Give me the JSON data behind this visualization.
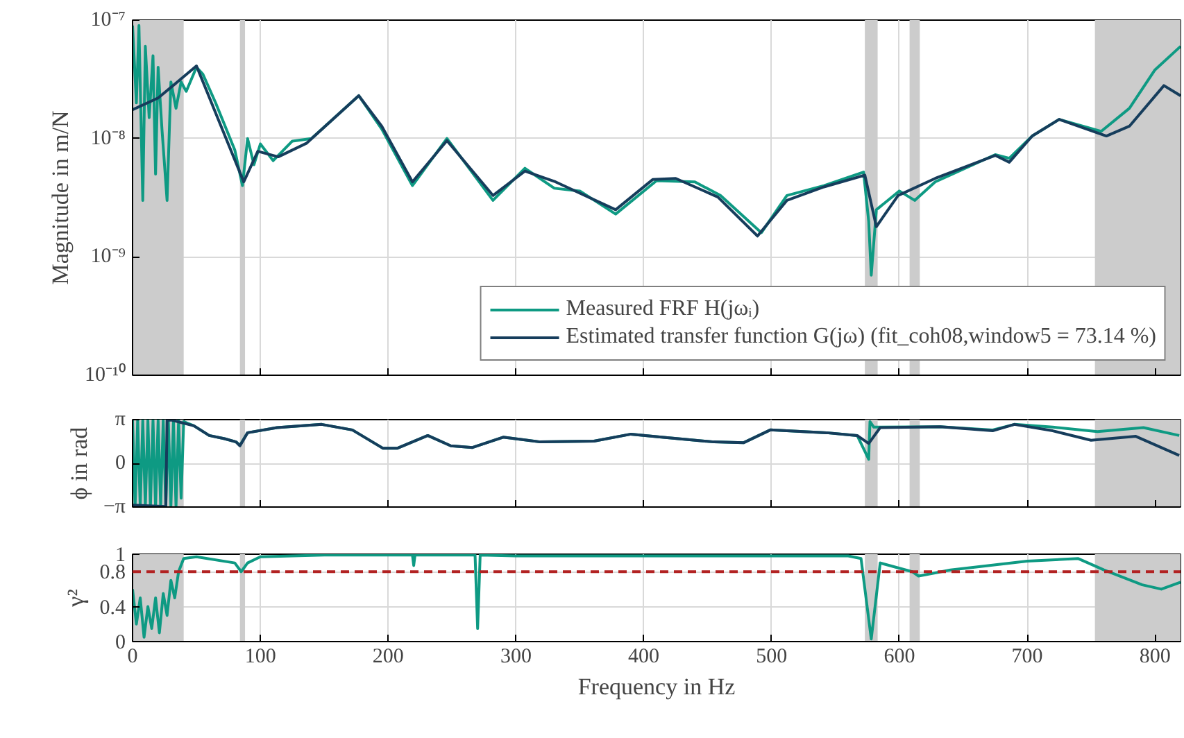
{
  "chart_data": [
    {
      "type": "line",
      "ylabel": "Magnitude in m/N",
      "log": true,
      "xlim": [
        0,
        820
      ],
      "ylim": [
        1e-10,
        1e-07
      ],
      "xticks": [
        0,
        100,
        200,
        300,
        400,
        500,
        600,
        700,
        800
      ],
      "yticks": [
        {
          "value": 1e-10,
          "label": "10⁻¹⁰"
        },
        {
          "value": 1e-09,
          "label": "10⁻⁹"
        },
        {
          "value": 1e-08,
          "label": "10⁻⁸"
        },
        {
          "value": 1e-07,
          "label": "10⁻⁷"
        }
      ],
      "tick_labels": "y",
      "grid": true,
      "legend": "bottom right",
      "line_style": "solid",
      "bands": [
        {
          "axis": "x",
          "from": 0,
          "to": 40,
          "color": "#cccccc"
        },
        {
          "axis": "x",
          "from": 84,
          "to": 88,
          "color": "#cccccc"
        },
        {
          "axis": "x",
          "from": 573,
          "to": 583,
          "color": "#cccccc"
        },
        {
          "axis": "x",
          "from": 608,
          "to": 616,
          "color": "#cccccc"
        },
        {
          "axis": "x",
          "from": 753,
          "to": 820,
          "color": "#cccccc"
        }
      ],
      "series": [
        {
          "name": "Measured FRF H(jωᵢ)",
          "color": "#0e9a83",
          "x": [
            0,
            3,
            5,
            8,
            10,
            13,
            16,
            18,
            20,
            23,
            27,
            30,
            34,
            38,
            42,
            50,
            55,
            65,
            80,
            86,
            90,
            95,
            100,
            110,
            125,
            140,
            177,
            195,
            219,
            246,
            282,
            307,
            330,
            350,
            378,
            410,
            440,
            460,
            492,
            512,
            541,
            572,
            576,
            578,
            582,
            600,
            612,
            628,
            675,
            686,
            704,
            725,
            758,
            780,
            800,
            820
          ],
          "values": [
            9e-08,
            2e-08,
            9e-08,
            3e-09,
            6e-08,
            1.5e-08,
            5e-08,
            5e-09,
            4e-08,
            1.2e-08,
            3e-09,
            3e-08,
            1.8e-08,
            3e-08,
            2.5e-08,
            4e-08,
            3.5e-08,
            2e-08,
            8e-09,
            4e-09,
            1e-08,
            6e-09,
            9e-09,
            6.5e-09,
            9.5e-09,
            1e-08,
            2.3e-08,
            1.2e-08,
            4e-09,
            1e-08,
            3e-09,
            5.6e-09,
            3.8e-09,
            3.6e-09,
            2.3e-09,
            4.4e-09,
            4.3e-09,
            3.3e-09,
            1.6e-09,
            3.3e-09,
            4e-09,
            5.2e-09,
            2e-09,
            7e-10,
            2.5e-09,
            3.6e-09,
            3e-09,
            4.3e-09,
            7.3e-09,
            6.8e-09,
            1.05e-08,
            1.45e-08,
            1.15e-08,
            1.8e-08,
            3.8e-08,
            6e-08
          ]
        },
        {
          "name": "Estimated transfer function G(jω) (fit_coh08,window5 = 73.14 %)",
          "color": "#163d5c",
          "x": [
            0,
            20,
            35,
            50,
            87,
            98,
            114,
            136,
            177,
            195,
            219,
            246,
            282,
            307,
            331,
            378,
            407,
            425,
            458,
            489,
            512,
            541,
            573,
            582,
            599,
            628,
            675,
            686,
            704,
            725,
            762,
            780,
            807,
            820
          ],
          "values": [
            1.75e-08,
            2.2e-08,
            3e-08,
            4.1e-08,
            4.3e-09,
            7.8e-09,
            7e-09,
            9.1e-09,
            2.3e-08,
            1.27e-08,
            4.3e-09,
            9.6e-09,
            3.3e-09,
            5.3e-09,
            4.3e-09,
            2.5e-09,
            4.5e-09,
            4.6e-09,
            3.2e-09,
            1.5e-09,
            3e-09,
            3.9e-09,
            4.9e-09,
            1.8e-09,
            3.3e-09,
            4.6e-09,
            7.2e-09,
            6.3e-09,
            1.05e-08,
            1.45e-08,
            1.05e-08,
            1.27e-08,
            2.8e-08,
            2.3e-08
          ]
        }
      ]
    },
    {
      "type": "line",
      "ylabel": "ϕ in rad",
      "xlim": [
        0,
        820
      ],
      "ylim": [
        -3.1416,
        3.1416
      ],
      "xticks": [
        0,
        100,
        200,
        300,
        400,
        500,
        600,
        700,
        800
      ],
      "yticks": [
        {
          "value": -3.1416,
          "label": "−π"
        },
        0,
        {
          "value": 3.1416,
          "label": "π"
        }
      ],
      "tick_labels": "y",
      "grid": true,
      "line_style": "solid",
      "bands": [
        {
          "axis": "x",
          "from": 0,
          "to": 40,
          "color": "#cccccc"
        },
        {
          "axis": "x",
          "from": 84,
          "to": 88,
          "color": "#cccccc"
        },
        {
          "axis": "x",
          "from": 573,
          "to": 583,
          "color": "#cccccc"
        },
        {
          "axis": "x",
          "from": 608,
          "to": 616,
          "color": "#cccccc"
        },
        {
          "axis": "x",
          "from": 753,
          "to": 820,
          "color": "#cccccc"
        }
      ],
      "series": [
        {
          "color": "#0e9a83",
          "x": [
            0,
            2,
            4,
            6,
            8,
            10,
            12,
            14,
            16,
            18,
            20,
            22,
            24,
            26,
            28,
            30,
            32,
            34,
            36,
            38,
            40,
            48,
            60,
            72,
            81,
            84,
            90,
            113,
            148,
            172,
            196,
            207,
            231,
            249,
            266,
            290,
            319,
            361,
            390,
            414,
            455,
            478,
            499,
            543,
            567,
            576,
            577,
            580,
            632,
            673,
            690,
            720,
            755,
            791,
            819
          ],
          "values": [
            3.1,
            -3.1,
            3.1,
            -3.1,
            3.1,
            -3.1,
            3.1,
            -3.1,
            3.1,
            -3.1,
            3.1,
            -3.1,
            3.1,
            -3.1,
            3.1,
            -3.1,
            3.1,
            -3.1,
            3.1,
            -2.5,
            3.0,
            2.7,
            2.0,
            1.77,
            1.54,
            1.3,
            2.2,
            2.57,
            2.8,
            2.4,
            1.08,
            1.08,
            2.0,
            1.26,
            1.14,
            1.88,
            1.54,
            1.6,
            2.1,
            1.88,
            1.54,
            1.48,
            2.4,
            2.2,
            2.0,
            0.29,
            3.0,
            2.6,
            2.63,
            2.4,
            2.8,
            2.6,
            2.28,
            2.57,
            2.0
          ]
        },
        {
          "color": "#163d5c",
          "x": [
            0,
            26,
            27,
            31,
            48,
            60,
            72,
            81,
            84,
            90,
            113,
            148,
            172,
            196,
            207,
            231,
            249,
            266,
            290,
            319,
            361,
            390,
            414,
            455,
            478,
            499,
            543,
            567,
            576,
            585,
            632,
            673,
            690,
            720,
            750,
            785,
            819
          ],
          "values": [
            -3.0,
            -3.1,
            3.1,
            3.1,
            2.7,
            2.0,
            1.77,
            1.54,
            1.26,
            2.2,
            2.57,
            2.8,
            2.4,
            1.08,
            1.08,
            2.0,
            1.26,
            1.14,
            1.88,
            1.54,
            1.6,
            2.1,
            1.88,
            1.54,
            1.48,
            2.4,
            2.2,
            2.0,
            1.43,
            2.57,
            2.63,
            2.34,
            2.8,
            2.34,
            1.66,
            1.94,
            0.57
          ]
        }
      ]
    },
    {
      "type": "line",
      "xlabel": "Frequency in Hz",
      "ylabel": "γ²",
      "xlim": [
        0,
        820
      ],
      "ylim": [
        0,
        1
      ],
      "xticks": [
        0,
        100,
        200,
        300,
        400,
        500,
        600,
        700,
        800
      ],
      "yticks": [
        0,
        0.4,
        0.8,
        1
      ],
      "grid": true,
      "line_style": "solid",
      "ref_lines": [
        {
          "axis": "y",
          "value": 0.8,
          "color": "#b22222",
          "line_style": "dashed"
        }
      ],
      "bands": [
        {
          "axis": "x",
          "from": 0,
          "to": 40,
          "color": "#cccccc"
        },
        {
          "axis": "x",
          "from": 84,
          "to": 88,
          "color": "#cccccc"
        },
        {
          "axis": "x",
          "from": 573,
          "to": 583,
          "color": "#cccccc"
        },
        {
          "axis": "x",
          "from": 608,
          "to": 616,
          "color": "#cccccc"
        },
        {
          "axis": "x",
          "from": 753,
          "to": 820,
          "color": "#cccccc"
        }
      ],
      "series": [
        {
          "color": "#0e9a83",
          "x": [
            0,
            3,
            6,
            9,
            12,
            15,
            18,
            21,
            24,
            27,
            30,
            33,
            36,
            40,
            50,
            80,
            85,
            90,
            100,
            150,
            219,
            220,
            221,
            268,
            270,
            272,
            300,
            560,
            570,
            578,
            585,
            610,
            615,
            640,
            700,
            740,
            760,
            790,
            805,
            820
          ],
          "values": [
            0.6,
            0.2,
            0.5,
            0.05,
            0.4,
            0.15,
            0.5,
            0.1,
            0.55,
            0.3,
            0.7,
            0.5,
            0.8,
            0.95,
            0.97,
            0.9,
            0.8,
            0.9,
            0.97,
            0.99,
            0.99,
            0.87,
            0.99,
            0.99,
            0.15,
            0.99,
            0.98,
            0.98,
            0.95,
            0.03,
            0.9,
            0.8,
            0.75,
            0.82,
            0.92,
            0.95,
            0.82,
            0.65,
            0.6,
            0.68
          ]
        }
      ]
    }
  ]
}
